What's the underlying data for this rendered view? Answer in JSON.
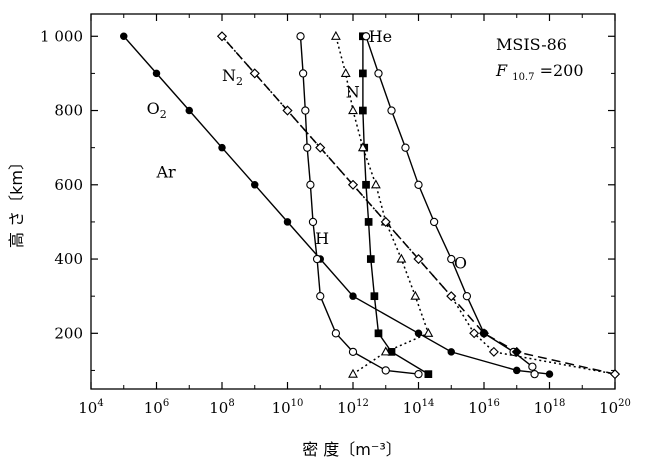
{
  "chart_data": {
    "type": "line",
    "xlabel": "密 度〔m⁻³〕",
    "ylabel": "高 さ〔km〕",
    "x_scale": "log",
    "xlim": [
      10000,
      1e+20
    ],
    "ylim": [
      50,
      1060
    ],
    "x_ticks": [
      {
        "value": 10000.0,
        "base": "10",
        "exp": "4"
      },
      {
        "value": 1000000.0,
        "base": "10",
        "exp": "6"
      },
      {
        "value": 100000000.0,
        "base": "10",
        "exp": "8"
      },
      {
        "value": 10000000000.0,
        "base": "10",
        "exp": "10"
      },
      {
        "value": 1000000000000.0,
        "base": "10",
        "exp": "12"
      },
      {
        "value": 100000000000000.0,
        "base": "10",
        "exp": "14"
      },
      {
        "value": 1e+16,
        "base": "10",
        "exp": "16"
      },
      {
        "value": 1e+18,
        "base": "10",
        "exp": "18"
      },
      {
        "value": 1e+20,
        "base": "10",
        "exp": "20"
      }
    ],
    "y_ticks": [
      {
        "value": 200,
        "label": "200"
      },
      {
        "value": 400,
        "label": "400"
      },
      {
        "value": 600,
        "label": "600"
      },
      {
        "value": 800,
        "label": "800"
      },
      {
        "value": 1000,
        "label": "1 000"
      }
    ],
    "annotation": {
      "line1": "MSIS-86",
      "line2_var": "F",
      "line2_sub": "10.7",
      "line2_rest": "=200"
    },
    "series": [
      {
        "name": "He",
        "label_parts": [
          "He",
          ""
        ],
        "label_at": [
          3000000000000.0,
          985
        ],
        "line": "solid",
        "marker": "square-filled",
        "points": [
          [
            200000000000000.0,
            90
          ],
          [
            15000000000000.0,
            150
          ],
          [
            6000000000000.0,
            200
          ],
          [
            4500000000000.0,
            300
          ],
          [
            3500000000000.0,
            400
          ],
          [
            3000000000000.0,
            500
          ],
          [
            2500000000000.0,
            600
          ],
          [
            2200000000000.0,
            700
          ],
          [
            2000000000000.0,
            800
          ],
          [
            2000000000000.0,
            900
          ],
          [
            2000000000000.0,
            1000
          ]
        ]
      },
      {
        "name": "O",
        "label_parts": [
          "O",
          ""
        ],
        "label_at": [
          1200000000000000.0,
          375
        ],
        "line": "solid",
        "marker": "circle-open",
        "points": [
          [
            3.5e+17,
            90
          ],
          [
            3e+17,
            110
          ],
          [
            8e+16,
            150
          ],
          [
            1e+16,
            200
          ],
          [
            3000000000000000.0,
            300
          ],
          [
            1000000000000000.0,
            400
          ],
          [
            300000000000000.0,
            500
          ],
          [
            100000000000000.0,
            600
          ],
          [
            40000000000000.0,
            700
          ],
          [
            15000000000000.0,
            800
          ],
          [
            6000000000000.0,
            900
          ],
          [
            2500000000000.0,
            1000
          ]
        ]
      },
      {
        "name": "N2",
        "label_parts": [
          "N",
          "2"
        ],
        "label_at": [
          100000000.0,
          880
        ],
        "line": "dashed",
        "marker": "diamond-filled",
        "points": [
          [
            1e+20,
            90
          ],
          [
            1e+17,
            150
          ],
          [
            1e+16,
            200
          ],
          [
            1000000000000000.0,
            300
          ],
          [
            100000000000000.0,
            400
          ],
          [
            10000000000000.0,
            500
          ],
          [
            1000000000000.0,
            600
          ],
          [
            100000000000.0,
            700
          ],
          [
            10000000000.0,
            800
          ],
          [
            1000000000.0,
            900
          ],
          [
            100000000.0,
            1000
          ]
        ]
      },
      {
        "name": "N",
        "label_parts": [
          "N",
          ""
        ],
        "label_at": [
          600000000000.0,
          835
        ],
        "line": "dotted",
        "marker": "triangle-open",
        "points": [
          [
            1000000000000.0,
            90
          ],
          [
            10000000000000.0,
            150
          ],
          [
            200000000000000.0,
            200
          ],
          [
            80000000000000.0,
            300
          ],
          [
            30000000000000.0,
            400
          ],
          [
            10000000000000.0,
            500
          ],
          [
            5000000000000.0,
            600
          ],
          [
            2000000000000.0,
            700
          ],
          [
            1000000000000.0,
            800
          ],
          [
            600000000000.0,
            900
          ],
          [
            300000000000.0,
            1000
          ]
        ]
      },
      {
        "name": "O2",
        "label_parts": [
          "O",
          "2"
        ],
        "label_at": [
          500000.0,
          790
        ],
        "line": "dotted",
        "marker": "diamond-open",
        "points": [
          [
            1e+20,
            90
          ],
          [
            2e+16,
            150
          ],
          [
            5000000000000000.0,
            200
          ],
          [
            1000000000000000.0,
            300
          ],
          [
            100000000000000.0,
            400
          ],
          [
            10000000000000.0,
            500
          ],
          [
            1000000000000.0,
            600
          ],
          [
            100000000000.0,
            700
          ],
          [
            10000000000.0,
            800
          ],
          [
            1000000000.0,
            900
          ],
          [
            100000000.0,
            1000
          ]
        ]
      },
      {
        "name": "Ar",
        "label_parts": [
          "Ar",
          ""
        ],
        "label_at": [
          1000000.0,
          620
        ],
        "line": "solid",
        "marker": "circle-filled",
        "points": [
          [
            1e+18,
            90
          ],
          [
            1e+17,
            100
          ],
          [
            1000000000000000.0,
            150
          ],
          [
            100000000000000.0,
            200
          ],
          [
            1000000000000.0,
            300
          ],
          [
            100000000000.0,
            400
          ],
          [
            10000000000.0,
            500
          ],
          [
            1000000000.0,
            600
          ],
          [
            100000000.0,
            700
          ],
          [
            10000000.0,
            800
          ],
          [
            1000000.0,
            900
          ],
          [
            100000.0,
            1000
          ]
        ]
      },
      {
        "name": "H",
        "label_parts": [
          "H",
          ""
        ],
        "label_at": [
          70000000000.0,
          440
        ],
        "line": "solid",
        "marker": "circle-open",
        "points": [
          [
            100000000000000.0,
            90
          ],
          [
            10000000000000.0,
            100
          ],
          [
            1000000000000.0,
            150
          ],
          [
            300000000000.0,
            200
          ],
          [
            100000000000.0,
            300
          ],
          [
            80000000000.0,
            400
          ],
          [
            60000000000.0,
            500
          ],
          [
            50000000000.0,
            600
          ],
          [
            40000000000.0,
            700
          ],
          [
            35000000000.0,
            800
          ],
          [
            30000000000.0,
            900
          ],
          [
            25000000000.0,
            1000
          ]
        ]
      }
    ]
  }
}
